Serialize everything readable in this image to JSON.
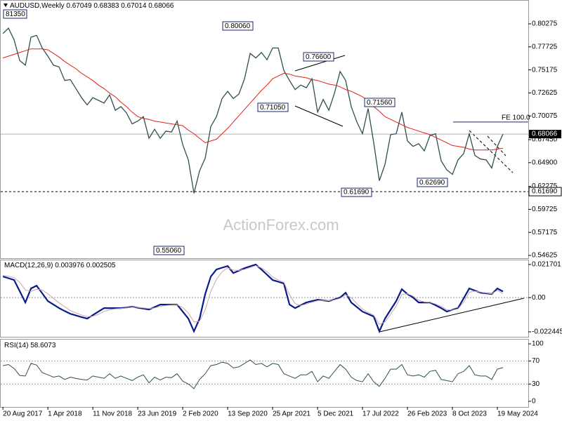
{
  "chart_data": [
    {
      "type": "line",
      "title": "AUDUSD,Weekly",
      "last_bar": {
        "open": 0.67049,
        "high": 0.68383,
        "low": 0.67014,
        "close": 0.68066
      },
      "x": [
        "2017-08-20",
        "2017-09-17",
        "2017-10-15",
        "2017-11-12",
        "2017-12-10",
        "2018-01-07",
        "2018-02-04",
        "2018-03-04",
        "2018-04-01",
        "2018-04-29",
        "2018-05-27",
        "2018-06-24",
        "2018-07-22",
        "2018-08-19",
        "2018-09-16",
        "2018-10-14",
        "2018-11-11",
        "2018-12-09",
        "2019-01-06",
        "2019-02-03",
        "2019-03-03",
        "2019-03-31",
        "2019-04-28",
        "2019-05-26",
        "2019-06-23",
        "2019-07-21",
        "2019-08-18",
        "2019-09-15",
        "2019-10-13",
        "2019-11-10",
        "2019-12-08",
        "2020-01-05",
        "2020-02-02",
        "2020-03-01",
        "2020-03-29",
        "2020-04-26",
        "2020-05-24",
        "2020-06-21",
        "2020-07-19",
        "2020-08-16",
        "2020-09-13",
        "2020-10-11",
        "2020-11-08",
        "2020-12-06",
        "2021-01-03",
        "2021-01-31",
        "2021-02-28",
        "2021-03-28",
        "2021-04-25",
        "2021-05-23",
        "2021-06-20",
        "2021-07-18",
        "2021-08-15",
        "2021-09-12",
        "2021-10-10",
        "2021-11-07",
        "2021-12-05",
        "2022-01-02",
        "2022-01-30",
        "2022-02-27",
        "2022-03-27",
        "2022-04-24",
        "2022-05-22",
        "2022-06-19",
        "2022-07-17",
        "2022-08-14",
        "2022-09-11",
        "2022-10-09",
        "2022-11-06",
        "2022-12-04",
        "2023-01-01",
        "2023-01-29",
        "2023-02-26",
        "2023-03-26",
        "2023-04-23",
        "2023-05-21",
        "2023-06-18",
        "2023-07-16",
        "2023-08-13",
        "2023-09-10",
        "2023-10-08",
        "2023-11-05",
        "2023-12-03",
        "2023-12-31",
        "2024-01-28",
        "2024-02-25",
        "2024-03-24",
        "2024-04-21",
        "2024-05-19",
        "2024-06-16"
      ],
      "series": [
        {
          "color": "#2f4f4f",
          "values": [
            0.792,
            0.798,
            0.785,
            0.762,
            0.757,
            0.788,
            0.79,
            0.776,
            0.767,
            0.757,
            0.755,
            0.74,
            0.741,
            0.731,
            0.721,
            0.713,
            0.721,
            0.718,
            0.715,
            0.724,
            0.707,
            0.711,
            0.704,
            0.692,
            0.695,
            0.7,
            0.676,
            0.686,
            0.676,
            0.684,
            0.683,
            0.695,
            0.669,
            0.652,
            0.615,
            0.64,
            0.654,
            0.689,
            0.7,
            0.72,
            0.728,
            0.72,
            0.725,
            0.742,
            0.77,
            0.765,
            0.771,
            0.763,
            0.776,
            0.776,
            0.751,
            0.74,
            0.73,
            0.735,
            0.732,
            0.742,
            0.705,
            0.719,
            0.707,
            0.726,
            0.75,
            0.74,
            0.711,
            0.694,
            0.681,
            0.709,
            0.671,
            0.629,
            0.647,
            0.68,
            0.681,
            0.705,
            0.673,
            0.667,
            0.67,
            0.662,
            0.679,
            0.681,
            0.651,
            0.641,
            0.636,
            0.652,
            0.659,
            0.681,
            0.657,
            0.653,
            0.652,
            0.643,
            0.667,
            0.68066
          ]
        },
        {
          "color": "#e0201b",
          "values": [
            0.765,
            0.767,
            0.769,
            0.771,
            0.773,
            0.775,
            0.775,
            0.775,
            0.774,
            0.77,
            0.766,
            0.761,
            0.757,
            0.753,
            0.748,
            0.744,
            0.74,
            0.735,
            0.731,
            0.726,
            0.722,
            0.716,
            0.711,
            0.705,
            0.7,
            0.698,
            0.697,
            0.695,
            0.694,
            0.693,
            0.692,
            0.691,
            0.69,
            0.685,
            0.681,
            0.676,
            0.671,
            0.673,
            0.675,
            0.681,
            0.687,
            0.694,
            0.701,
            0.708,
            0.715,
            0.722,
            0.729,
            0.735,
            0.742,
            0.745,
            0.748,
            0.747,
            0.745,
            0.744,
            0.743,
            0.741,
            0.74,
            0.738,
            0.736,
            0.735,
            0.733,
            0.73,
            0.728,
            0.725,
            0.722,
            0.717,
            0.711,
            0.706,
            0.7,
            0.697,
            0.694,
            0.691,
            0.688,
            0.686,
            0.684,
            0.682,
            0.68,
            0.677,
            0.674,
            0.671,
            0.668,
            0.667,
            0.666,
            0.664,
            0.663,
            0.663,
            0.663,
            0.663,
            0.664,
            0.665
          ]
        }
      ],
      "xlim": [
        "2017-08-09",
        "2024-10-20"
      ],
      "ylim": [
        0.54314,
        0.82918
      ],
      "yticks": [
        0.80275,
        0.77725,
        0.75175,
        0.72625,
        0.70075,
        {
          "value": 0.6745,
          "label": "0.67450"
        },
        {
          "value": 0.649,
          "label": "0.64900"
        },
        0.62275,
        0.59725,
        0.57175,
        0.54625
      ],
      "grid": false,
      "support_level": {
        "value": 0.6169,
        "label": "0.61690"
      },
      "fe_level": {
        "value": 0.694,
        "label": "FE 100.0"
      },
      "annotations": [
        "81350",
        "0.80060",
        "0.76600",
        "0.71050",
        "0.71560",
        "0.62690",
        "0.55060"
      ],
      "watermark": "ActionForex.com"
    },
    {
      "type": "line",
      "title": "MACD(12,26,9)",
      "x": [
        "2017-08-20",
        "2017-09-17",
        "2017-10-15",
        "2017-11-12",
        "2017-12-10",
        "2018-01-07",
        "2018-02-04",
        "2018-03-04",
        "2018-04-01",
        "2018-04-29",
        "2018-05-27",
        "2018-06-24",
        "2018-07-22",
        "2018-08-19",
        "2018-09-16",
        "2018-10-14",
        "2018-11-11",
        "2018-12-09",
        "2019-01-06",
        "2019-02-03",
        "2019-03-03",
        "2019-03-31",
        "2019-04-28",
        "2019-05-26",
        "2019-06-23",
        "2019-07-21",
        "2019-08-18",
        "2019-09-15",
        "2019-10-13",
        "2019-11-10",
        "2019-12-08",
        "2020-01-05",
        "2020-02-02",
        "2020-03-01",
        "2020-03-29",
        "2020-04-26",
        "2020-05-24",
        "2020-06-21",
        "2020-07-19",
        "2020-08-16",
        "2020-09-13",
        "2020-10-11",
        "2020-11-08",
        "2020-12-06",
        "2021-01-03",
        "2021-01-31",
        "2021-02-28",
        "2021-03-28",
        "2021-04-25",
        "2021-05-23",
        "2021-06-20",
        "2021-07-18",
        "2021-08-15",
        "2021-09-12",
        "2021-10-10",
        "2021-11-07",
        "2021-12-05",
        "2022-01-02",
        "2022-01-30",
        "2022-02-27",
        "2022-03-27",
        "2022-04-24",
        "2022-05-22",
        "2022-06-19",
        "2022-07-17",
        "2022-08-14",
        "2022-09-11",
        "2022-10-09",
        "2022-11-06",
        "2022-12-04",
        "2023-01-01",
        "2023-01-29",
        "2023-02-26",
        "2023-03-26",
        "2023-04-23",
        "2023-05-21",
        "2023-06-18",
        "2023-07-16",
        "2023-08-13",
        "2023-09-10",
        "2023-10-08",
        "2023-11-05",
        "2023-12-03",
        "2023-12-31",
        "2024-01-28",
        "2024-02-25",
        "2024-03-24",
        "2024-04-21",
        "2024-05-19",
        "2024-06-16"
      ],
      "series": [
        {
          "color": "#0a1a8c",
          "values": [
            0.0138,
            0.0127,
            0.0115,
            0.0042,
            -0.0032,
            0.006,
            0.0078,
            0.0028,
            -0.0023,
            -0.0046,
            -0.0069,
            -0.0088,
            -0.0106,
            -0.0117,
            -0.0128,
            -0.0138,
            -0.0115,
            -0.0092,
            -0.0069,
            -0.0069,
            -0.0069,
            -0.0069,
            -0.0065,
            -0.006,
            -0.0066,
            -0.0072,
            -0.0078,
            -0.0062,
            -0.0046,
            -0.0046,
            -0.0046,
            -0.0046,
            -0.0092,
            -0.0138,
            -0.0221,
            -0.0138,
            0.0023,
            0.0138,
            0.0184,
            0.0196,
            0.0207,
            0.0161,
            0.0177,
            0.0193,
            0.0205,
            0.0217,
            0.0184,
            0.015,
            0.0115,
            0.0104,
            0.0092,
            -0.0046,
            -0.0069,
            -0.005,
            -0.0032,
            -0.0023,
            -0.0014,
            -0.0018,
            -0.0023,
            -0.0012,
            0,
            0.0032,
            -0.0032,
            -0.0062,
            -0.0092,
            -0.0108,
            -0.0124,
            -0.0221,
            -0.0138,
            -0.008,
            -0.0023,
            0.0055,
            0.0023,
            0,
            -0.0032,
            -0.0032,
            -0.0032,
            -0.005,
            -0.0069,
            -0.0092,
            -0.008,
            -0.0069,
            -0.0005,
            0.006,
            0.0046,
            0.0032,
            0.0028,
            0.0023,
            0.006,
            0.003976
          ]
        },
        {
          "color": "#c8a8a8",
          "values": [
            0.0145,
            0.014,
            0.013,
            0.01,
            0.005,
            0.004,
            0.0055,
            0.005,
            0.0025,
            -0.0005,
            -0.0035,
            -0.006,
            -0.0085,
            -0.01,
            -0.0115,
            -0.0125,
            -0.0122,
            -0.011,
            -0.009,
            -0.008,
            -0.0074,
            -0.0071,
            -0.0068,
            -0.0064,
            -0.0064,
            -0.0068,
            -0.0072,
            -0.0068,
            -0.0058,
            -0.0052,
            -0.0049,
            -0.0047,
            -0.0065,
            -0.01,
            -0.016,
            -0.0155,
            -0.008,
            0.004,
            0.012,
            0.017,
            0.0195,
            0.018,
            0.0178,
            0.0185,
            0.0198,
            0.021,
            0.0195,
            0.017,
            0.0135,
            0.0115,
            0.01,
            0.002,
            -0.004,
            -0.0052,
            -0.0042,
            -0.003,
            -0.002,
            -0.0018,
            -0.002,
            -0.0015,
            -0.0005,
            0.0018,
            0,
            -0.004,
            -0.0075,
            -0.0098,
            -0.0115,
            -0.0175,
            -0.016,
            -0.011,
            -0.0055,
            0.002,
            0.0025,
            0.001,
            -0.0018,
            -0.0028,
            -0.003,
            -0.0042,
            -0.0058,
            -0.008,
            -0.0082,
            -0.0074,
            -0.003,
            0.0035,
            0.0042,
            0.0036,
            0.003,
            0.0025,
            0.0048,
            0.002505
          ]
        }
      ],
      "xlim": [
        "2017-08-09",
        "2024-10-20"
      ],
      "ylim": [
        -0.0257,
        0.0249
      ],
      "yticks": [
        0.021701,
        {
          "value": 0,
          "label": "0.00"
        },
        -0.022445
      ],
      "levels": [
        0
      ]
    },
    {
      "type": "line",
      "title": "RSI(14)",
      "x": [
        "2017-08-20",
        "2017-09-17",
        "2017-10-15",
        "2017-11-12",
        "2017-12-10",
        "2018-01-07",
        "2018-02-04",
        "2018-03-04",
        "2018-04-01",
        "2018-04-29",
        "2018-05-27",
        "2018-06-24",
        "2018-07-22",
        "2018-08-19",
        "2018-09-16",
        "2018-10-14",
        "2018-11-11",
        "2018-12-09",
        "2019-01-06",
        "2019-02-03",
        "2019-03-03",
        "2019-03-31",
        "2019-04-28",
        "2019-05-26",
        "2019-06-23",
        "2019-07-21",
        "2019-08-18",
        "2019-09-15",
        "2019-10-13",
        "2019-11-10",
        "2019-12-08",
        "2020-01-05",
        "2020-02-02",
        "2020-03-01",
        "2020-03-29",
        "2020-04-26",
        "2020-05-24",
        "2020-06-21",
        "2020-07-19",
        "2020-08-16",
        "2020-09-13",
        "2020-10-11",
        "2020-11-08",
        "2020-12-06",
        "2021-01-03",
        "2021-01-31",
        "2021-02-28",
        "2021-03-28",
        "2021-04-25",
        "2021-05-23",
        "2021-06-20",
        "2021-07-18",
        "2021-08-15",
        "2021-09-12",
        "2021-10-10",
        "2021-11-07",
        "2021-12-05",
        "2022-01-02",
        "2022-01-30",
        "2022-02-27",
        "2022-03-27",
        "2022-04-24",
        "2022-05-22",
        "2022-06-19",
        "2022-07-17",
        "2022-08-14",
        "2022-09-11",
        "2022-10-09",
        "2022-11-06",
        "2022-12-04",
        "2023-01-01",
        "2023-01-29",
        "2023-02-26",
        "2023-03-26",
        "2023-04-23",
        "2023-05-21",
        "2023-06-18",
        "2023-07-16",
        "2023-08-13",
        "2023-09-10",
        "2023-10-08",
        "2023-11-05",
        "2023-12-03",
        "2023-12-31",
        "2024-01-28",
        "2024-02-25",
        "2024-03-24",
        "2024-04-21",
        "2024-05-19",
        "2024-06-16"
      ],
      "series": [
        {
          "color": "#2f4f4f",
          "values": [
            62,
            64,
            57,
            45,
            44,
            66,
            63,
            50,
            46,
            42,
            44,
            38,
            42,
            40,
            38,
            37,
            44,
            42,
            40,
            48,
            40,
            44,
            40,
            36,
            42,
            46,
            32,
            42,
            37,
            42,
            41,
            48,
            35,
            30,
            22,
            38,
            48,
            62,
            64,
            68,
            66,
            58,
            60,
            66,
            72,
            64,
            66,
            60,
            66,
            64,
            48,
            44,
            40,
            46,
            46,
            52,
            34,
            44,
            40,
            52,
            64,
            56,
            42,
            36,
            34,
            48,
            34,
            26,
            40,
            56,
            56,
            64,
            46,
            44,
            46,
            42,
            52,
            54,
            38,
            36,
            34,
            48,
            52,
            62,
            46,
            44,
            44,
            38,
            56,
            58.6073
          ]
        }
      ],
      "xlim": [
        "2017-08-09",
        "2024-10-20"
      ],
      "ylim": [
        -9.9,
        108.6
      ],
      "yticks": [
        100,
        70,
        30,
        0
      ],
      "levels": [
        70,
        30
      ],
      "xticks": [
        {
          "value": "2017-08-20",
          "label": "20 Aug 2017"
        },
        {
          "value": "2018-04-01",
          "label": "1 Apr 2018"
        },
        {
          "value": "2018-11-11",
          "label": "11 Nov 2018"
        },
        {
          "value": "2019-06-23",
          "label": "23 Jun 2019"
        },
        {
          "value": "2020-02-02",
          "label": "2 Feb 2020"
        },
        {
          "value": "2020-09-13",
          "label": "13 Sep 2020"
        },
        {
          "value": "2021-04-25",
          "label": "25 Apr 2021"
        },
        {
          "value": "2021-12-05",
          "label": "5 Dec 2021"
        },
        {
          "value": "2022-07-17",
          "label": "17 Jul 2022"
        },
        {
          "value": "2023-02-26",
          "label": "26 Feb 2023"
        },
        {
          "value": "2023-10-08",
          "label": "8 Oct 2023"
        },
        {
          "value": "2024-05-19",
          "label": "19 May 2024"
        }
      ]
    }
  ]
}
